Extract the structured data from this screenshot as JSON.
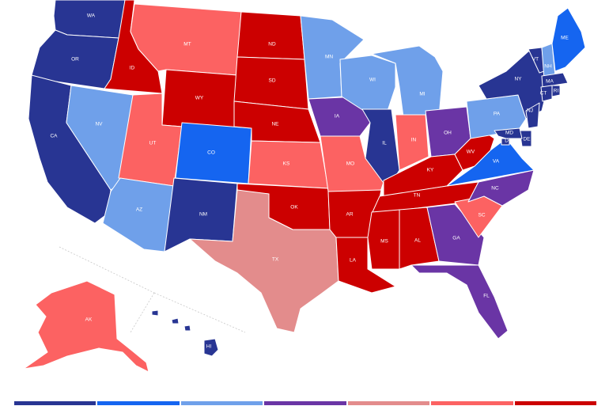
{
  "categories": [
    {
      "key": "solid_d",
      "color": "#283593"
    },
    {
      "key": "likely_d",
      "color": "#1565f0"
    },
    {
      "key": "lean_d",
      "color": "#6fa0ea"
    },
    {
      "key": "tossup",
      "color": "#6a35a5"
    },
    {
      "key": "tilt_r",
      "color": "#e38c8c"
    },
    {
      "key": "likely_r",
      "color": "#fc6262"
    },
    {
      "key": "solid_r",
      "color": "#cc0000"
    }
  ],
  "states": [
    {
      "abbr": "WA",
      "cat": "solid_d"
    },
    {
      "abbr": "OR",
      "cat": "solid_d"
    },
    {
      "abbr": "CA",
      "cat": "solid_d"
    },
    {
      "abbr": "ID",
      "cat": "solid_r"
    },
    {
      "abbr": "NV",
      "cat": "lean_d"
    },
    {
      "abbr": "MT",
      "cat": "likely_r"
    },
    {
      "abbr": "WY",
      "cat": "solid_r"
    },
    {
      "abbr": "UT",
      "cat": "likely_r"
    },
    {
      "abbr": "AZ",
      "cat": "lean_d"
    },
    {
      "abbr": "CO",
      "cat": "likely_d"
    },
    {
      "abbr": "NM",
      "cat": "solid_d"
    },
    {
      "abbr": "ND",
      "cat": "solid_r"
    },
    {
      "abbr": "SD",
      "cat": "solid_r"
    },
    {
      "abbr": "NE",
      "cat": "solid_r"
    },
    {
      "abbr": "KS",
      "cat": "likely_r"
    },
    {
      "abbr": "OK",
      "cat": "solid_r"
    },
    {
      "abbr": "TX",
      "cat": "tilt_r"
    },
    {
      "abbr": "MN",
      "cat": "lean_d"
    },
    {
      "abbr": "IA",
      "cat": "tossup"
    },
    {
      "abbr": "MO",
      "cat": "likely_r"
    },
    {
      "abbr": "AR",
      "cat": "solid_r"
    },
    {
      "abbr": "LA",
      "cat": "solid_r"
    },
    {
      "abbr": "WI",
      "cat": "lean_d"
    },
    {
      "abbr": "IL",
      "cat": "solid_d"
    },
    {
      "abbr": "MI",
      "cat": "lean_d"
    },
    {
      "abbr": "IN",
      "cat": "likely_r"
    },
    {
      "abbr": "OH",
      "cat": "tossup"
    },
    {
      "abbr": "KY",
      "cat": "solid_r"
    },
    {
      "abbr": "TN",
      "cat": "solid_r"
    },
    {
      "abbr": "MS",
      "cat": "solid_r"
    },
    {
      "abbr": "AL",
      "cat": "solid_r"
    },
    {
      "abbr": "GA",
      "cat": "tossup"
    },
    {
      "abbr": "FL",
      "cat": "tossup"
    },
    {
      "abbr": "SC",
      "cat": "likely_r"
    },
    {
      "abbr": "NC",
      "cat": "tossup"
    },
    {
      "abbr": "VA",
      "cat": "likely_d"
    },
    {
      "abbr": "WV",
      "cat": "solid_r"
    },
    {
      "abbr": "PA",
      "cat": "lean_d"
    },
    {
      "abbr": "NY",
      "cat": "solid_d"
    },
    {
      "abbr": "VT",
      "cat": "solid_d"
    },
    {
      "abbr": "NH",
      "cat": "lean_d"
    },
    {
      "abbr": "ME",
      "cat": "likely_d"
    },
    {
      "abbr": "MA",
      "cat": "solid_d"
    },
    {
      "abbr": "CT",
      "cat": "solid_d"
    },
    {
      "abbr": "RI",
      "cat": "solid_d"
    },
    {
      "abbr": "NJ",
      "cat": "solid_d"
    },
    {
      "abbr": "DE",
      "cat": "solid_d"
    },
    {
      "abbr": "MD",
      "cat": "solid_d"
    },
    {
      "abbr": "DC",
      "cat": "solid_d"
    },
    {
      "abbr": "AK",
      "cat": "likely_r"
    },
    {
      "abbr": "HI",
      "cat": "solid_d"
    }
  ]
}
